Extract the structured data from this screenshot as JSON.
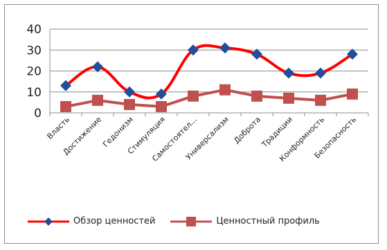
{
  "chart_data": {
    "type": "line",
    "categories": [
      "Власть",
      "Достижение",
      "Гедонизм",
      "Стимуляция",
      "Самостоятел...",
      "Универсализм",
      "Доброта",
      "Традиции",
      "Конформность",
      "Безопасность"
    ],
    "series": [
      {
        "name": "Обзор ценностей",
        "values": [
          13,
          22,
          10,
          9,
          30,
          31,
          28,
          19,
          19,
          28
        ],
        "color": "#ff0000",
        "marker": "diamond",
        "marker_color": "#1f4e9a",
        "smooth": true
      },
      {
        "name": "Ценностный профиль",
        "values": [
          3,
          6,
          4,
          3,
          8,
          11,
          8,
          7,
          6,
          9
        ],
        "color": "#c0504d",
        "marker": "square",
        "marker_color": "#c0504d",
        "smooth": false
      }
    ],
    "yticks": [
      "0",
      "10",
      "20",
      "30",
      "40"
    ],
    "ylim": [
      0,
      40
    ],
    "grid": true,
    "legend_position": "bottom",
    "title": "",
    "xlabel": "",
    "ylabel": ""
  }
}
